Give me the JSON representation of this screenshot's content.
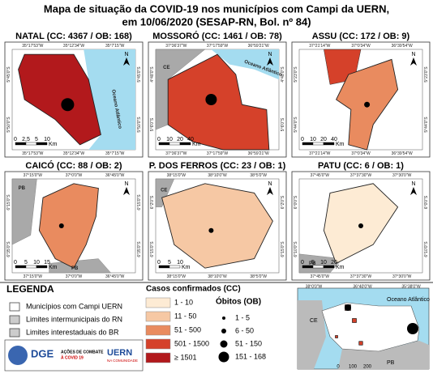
{
  "title": [
    "Mapa de situação da COVID-19 nos municípios com Campi da UERN,",
    "em 10/06/2020 (SESAP-RN, Bol. nº 84)"
  ],
  "north_label": "N",
  "panels": [
    {
      "title": "NATAL (CC: 4367 / OB: 168)",
      "color": "#b2191c",
      "x_coords": [
        "35°17'53\"W",
        "35°12'34\"W",
        "35°7'15\"W"
      ],
      "y_coords": [
        "5°45'0\"S",
        "5°50'0\"S"
      ],
      "scale": [
        "0",
        "2,5",
        "5",
        "10"
      ],
      "scale_unit": "Km",
      "regions": [
        "Oceano Atlântico"
      ]
    },
    {
      "title": "MOSSORÓ (CC: 1461 / OB: 78)",
      "color": "#d5412a",
      "x_coords": [
        "37°36'37\"W",
        "37°17'59\"W",
        "36°59'21\"W"
      ],
      "y_coords": [
        "4°48'0\"S",
        "5°6'0\"S"
      ],
      "scale": [
        "0",
        "10",
        "20",
        "40"
      ],
      "scale_unit": "Km",
      "regions": [
        "CE",
        "Oceano Atlântico"
      ]
    },
    {
      "title": "ASSU (CC: 172 / OB: 9)",
      "color": "#e98b5f",
      "x_coords": [
        "37°21'14\"W",
        "37°0'34\"W",
        "36°39'54\"W"
      ],
      "y_coords": [
        "5°23'0\"S",
        "5°44'0\"S"
      ],
      "scale": [
        "0",
        "10",
        "20",
        "40"
      ],
      "scale_unit": "Km",
      "regions": []
    },
    {
      "title": "CAICÓ (CC: 88 / OB: 2)",
      "color": "#e98b5f",
      "x_coords": [
        "37°15'0\"W",
        "37°0'0\"W",
        "36°45'0\"W"
      ],
      "y_coords": [
        "6°15'0\"S",
        "6°35'0\"S"
      ],
      "scale": [
        "0",
        "5",
        "10",
        "15"
      ],
      "scale_unit": "Km",
      "regions": [
        "PB",
        "PB"
      ]
    },
    {
      "title": "P. DOS FERROS (CC: 23 / OB: 1)",
      "color": "#f6c8a4",
      "x_coords": [
        "38°15'0\"W",
        "38°10'0\"W",
        "38°5'0\"W"
      ],
      "y_coords": [
        "6°2'0\"S",
        "6°15'0\"S"
      ],
      "scale": [
        "0",
        "5",
        "10"
      ],
      "scale_unit": "Km",
      "regions": [
        "CE"
      ]
    },
    {
      "title": "PATU (CC: 6 / OB: 1)",
      "color": "#fdebd4",
      "x_coords": [
        "37°45'0\"W",
        "37°37'30\"W",
        "37°30'0\"W"
      ],
      "y_coords": [
        "6°0'0\"S",
        "6°10'0\"S"
      ],
      "scale": [
        "0",
        "5",
        "10",
        "20"
      ],
      "scale_unit": "Km",
      "regions": [
        "PB"
      ]
    }
  ],
  "legend": {
    "title": "LEGENDA",
    "items": [
      "Municípios com Campi UERN",
      "Limites intermunicipais do RN",
      "Limites interestaduais do BR"
    ],
    "cases_title": "Casos confirmados (CC)",
    "cases": [
      {
        "label": "1 - 10",
        "color": "#fdebd4"
      },
      {
        "label": "11 - 50",
        "color": "#f6c8a4"
      },
      {
        "label": "51 - 500",
        "color": "#e98b5f"
      },
      {
        "label": "501 - 1500",
        "color": "#d5412a"
      },
      {
        "label": "≥ 1501",
        "color": "#b2191c"
      }
    ],
    "deaths_title": "Óbitos (OB)",
    "deaths": [
      "1 - 5",
      "6 - 50",
      "51 - 150",
      "151 - 168"
    ]
  },
  "inset": {
    "x_coords": [
      "38°0'0\"W",
      "36°40'0\"W",
      "35°38'0\"W"
    ],
    "regions": [
      "CE",
      "PB",
      "Oceano Atlântico"
    ],
    "scale": [
      "0",
      "100",
      "200"
    ]
  },
  "logos": {
    "dge": "DGE",
    "campaign": [
      "AÇÕES DE COMBATE",
      "À COVID 19"
    ],
    "uern": "UERN",
    "uern_sub": "NA COMUNIDADE"
  }
}
